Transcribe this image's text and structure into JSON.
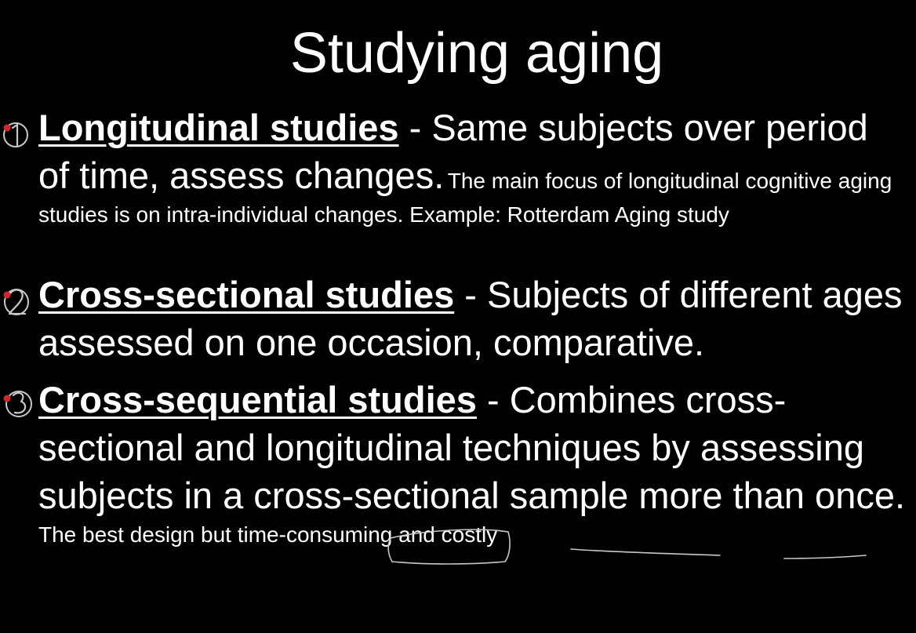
{
  "slide": {
    "title": "Studying aging",
    "items": [
      {
        "number": "1",
        "term": "Longitudinal studies",
        "separator": " - ",
        "description": "Same subjects over period of time, assess changes.",
        "note": "The main focus of longitudinal cognitive aging studies is on intra-individual changes. Example: Rotterdam Aging study"
      },
      {
        "number": "2",
        "term": "Cross-sectional studies",
        "separator": " - ",
        "description": "Subjects of different ages assessed on one occasion, comparative.",
        "note": ""
      },
      {
        "number": "3",
        "term": "Cross-sequential studies",
        "separator": " - ",
        "description": "Combines cross-sectional and longitudinal techniques by assessing subjects in a cross-sectional sample more than once.",
        "note": "The best design but time-consuming and costly"
      }
    ]
  },
  "colors": {
    "background": "#000000",
    "text": "#ffffff",
    "marker_dot": "#d0262e",
    "ink": "#c8c8c8"
  },
  "annotations": {
    "number_marks": [
      "handwritten-1",
      "handwritten-2",
      "handwritten-3"
    ],
    "ink_marks": [
      "circle-best-design",
      "underline-time-consuming",
      "underline-costly"
    ]
  }
}
